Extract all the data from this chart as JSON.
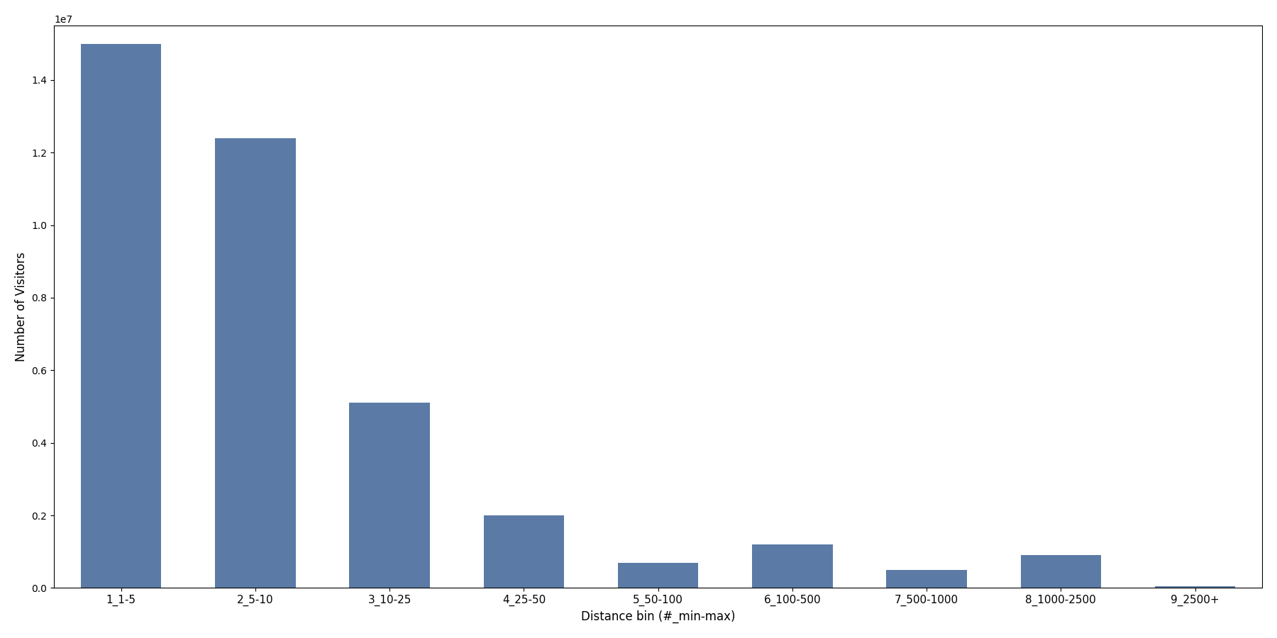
{
  "categories": [
    "1_1-5",
    "2_5-10",
    "3_10-25",
    "4_25-50",
    "5_50-100",
    "6_100-500",
    "7_500-1000",
    "8_1000-2500",
    "9_2500+"
  ],
  "values": [
    15000000,
    12400000,
    5100000,
    2000000,
    700000,
    1200000,
    500000,
    900000,
    50000
  ],
  "bar_color": "#5b7ba6",
  "xlabel": "Distance bin (#_min-max)",
  "ylabel": "Number of Visitors",
  "figsize": [
    18,
    9
  ],
  "dpi": 100,
  "bar_width": 0.6,
  "ylim": [
    0,
    15500000.0
  ],
  "tick_fontsize": 11,
  "label_fontsize": 12
}
